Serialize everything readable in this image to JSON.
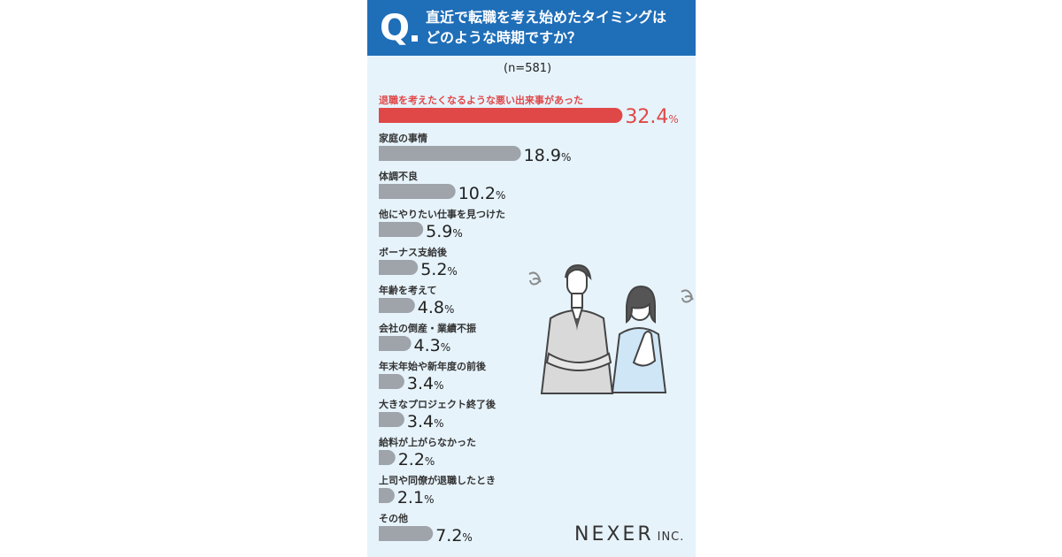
{
  "header": {
    "q_mark": "Q",
    "title_line1": "直近で転職を考え始めたタイミングは",
    "title_line2": "どのような時期ですか？"
  },
  "sample": "(n=581)",
  "logo": {
    "name": "NEXER",
    "suffix": "INC."
  },
  "colors": {
    "header": "#1f6eb8",
    "highlight": "#e04848",
    "bar": "#9fa3aa",
    "background": "#e6f3fb"
  },
  "chart_data": {
    "type": "bar",
    "orientation": "horizontal",
    "unit": "%",
    "categories": [
      "退職を考えたくなるような悪い出来事があった",
      "家庭の事情",
      "体調不良",
      "他にやりたい仕事を見つけた",
      "ボーナス支給後",
      "年齢を考えて",
      "会社の倒産・業績不振",
      "年末年始や新年度の前後",
      "大きなプロジェクト終了後",
      "給料が上がらなかった",
      "上司や同僚が退職したとき",
      "その他"
    ],
    "values": [
      32.4,
      18.9,
      10.2,
      5.9,
      5.2,
      4.8,
      4.3,
      3.4,
      3.4,
      2.2,
      2.1,
      7.2
    ],
    "value_labels": [
      "32.4",
      "18.9",
      "10.2",
      "5.9",
      "5.2",
      "4.8",
      "4.3",
      "3.4",
      "3.4",
      "2.2",
      "2.1",
      "7.2"
    ],
    "highlight_index": 0
  }
}
